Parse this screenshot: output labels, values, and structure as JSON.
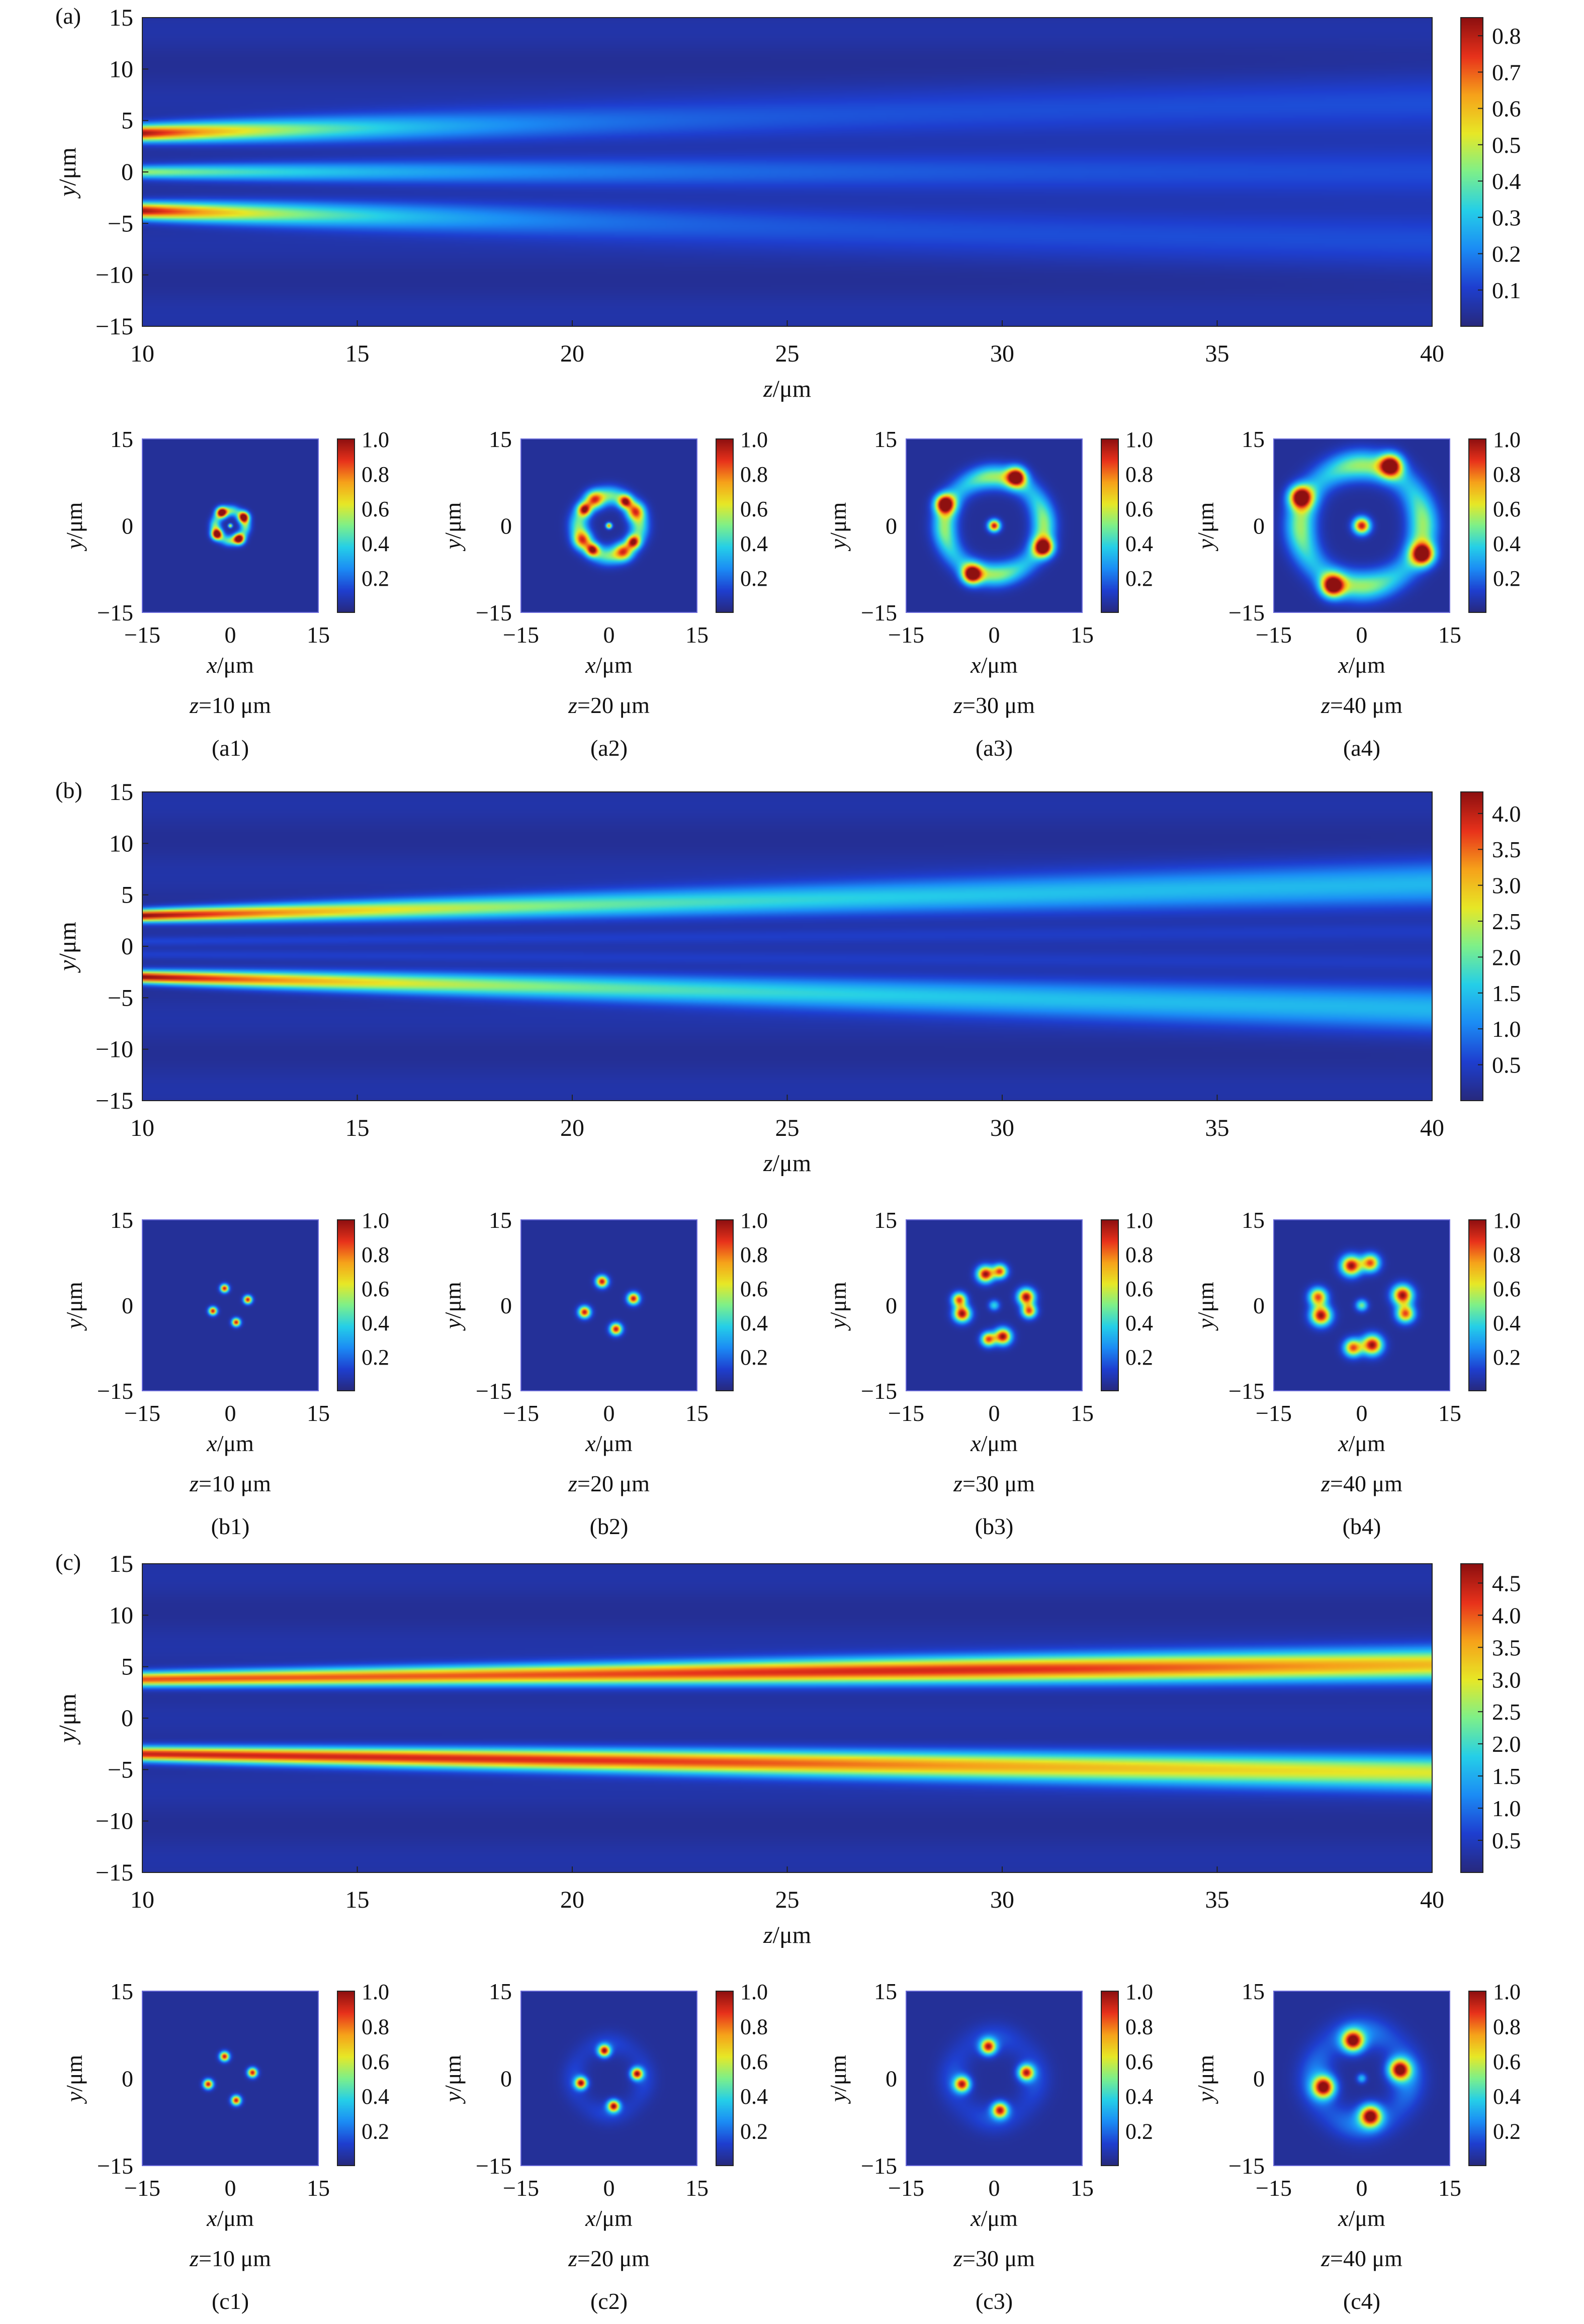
{
  "colormap": [
    "#27297e",
    "#1e3fd0",
    "#1b8cf5",
    "#25cfe8",
    "#7df08a",
    "#e7e826",
    "#f6a21a",
    "#e8321b",
    "#8e1010"
  ],
  "units": {
    "y_axis_label": "y",
    "x_axis_label": "x",
    "z_axis_label": "z",
    "unit": "/μm"
  },
  "panels": [
    {
      "label": "(a)",
      "main_plot": {
        "xticks": [
          "10",
          "15",
          "20",
          "25",
          "30",
          "35",
          "40"
        ],
        "yticks": [
          "15",
          "10",
          "5",
          "0",
          "−5",
          "−10",
          "−15"
        ],
        "colorbar_ticks": [
          "0.8",
          "0.7",
          "0.6",
          "0.5",
          "0.4",
          "0.3",
          "0.2",
          "0.1"
        ]
      },
      "sub_plots": [
        {
          "label": "(a1)",
          "caption_var": "z",
          "caption_val": "=10 μm"
        },
        {
          "label": "(a2)",
          "caption_var": "z",
          "caption_val": "=20 μm"
        },
        {
          "label": "(a3)",
          "caption_var": "z",
          "caption_val": "=30 μm"
        },
        {
          "label": "(a4)",
          "caption_var": "z",
          "caption_val": "=40 μm"
        }
      ]
    },
    {
      "label": "(b)",
      "main_plot": {
        "xticks": [
          "10",
          "15",
          "20",
          "25",
          "30",
          "35",
          "40"
        ],
        "yticks": [
          "15",
          "10",
          "5",
          "0",
          "−5",
          "−10",
          "−15"
        ],
        "colorbar_ticks": [
          "4.0",
          "3.5",
          "3.0",
          "2.5",
          "2.0",
          "1.5",
          "1.0",
          "0.5"
        ]
      },
      "sub_plots": [
        {
          "label": "(b1)",
          "caption_var": "z",
          "caption_val": "=10 μm"
        },
        {
          "label": "(b2)",
          "caption_var": "z",
          "caption_val": "=20 μm"
        },
        {
          "label": "(b3)",
          "caption_var": "z",
          "caption_val": "=30 μm"
        },
        {
          "label": "(b4)",
          "caption_var": "z",
          "caption_val": "=40 μm"
        }
      ]
    },
    {
      "label": "(c)",
      "main_plot": {
        "xticks": [
          "10",
          "15",
          "20",
          "25",
          "30",
          "35",
          "40"
        ],
        "yticks": [
          "15",
          "10",
          "5",
          "0",
          "−5",
          "−10",
          "−15"
        ],
        "colorbar_ticks": [
          "4.5",
          "4.0",
          "3.5",
          "3.0",
          "2.5",
          "2.0",
          "1.5",
          "1.0",
          "0.5"
        ]
      },
      "sub_plots": [
        {
          "label": "(c1)",
          "caption_var": "z",
          "caption_val": "=10 μm"
        },
        {
          "label": "(c2)",
          "caption_var": "z",
          "caption_val": "=20 μm"
        },
        {
          "label": "(c3)",
          "caption_var": "z",
          "caption_val": "=30 μm"
        },
        {
          "label": "(c4)",
          "caption_var": "z",
          "caption_val": "=40 μm"
        }
      ]
    }
  ],
  "sub_plot_axes": {
    "xticks": [
      "−15",
      "0",
      "15"
    ],
    "yticks": [
      "15",
      "0",
      "−15"
    ],
    "colorbar_ticks": [
      "1.0",
      "0.8",
      "0.6",
      "0.4",
      "0.2"
    ]
  },
  "chart_data": [
    {
      "type": "heatmap",
      "id": "a",
      "x_name": "z",
      "y_name": "y",
      "unit": "μm",
      "xlim": [
        10,
        40
      ],
      "ylim": [
        -15,
        15
      ],
      "clim": [
        0,
        0.85
      ],
      "beams": [
        {
          "y0": 3.8,
          "y1": 6.5,
          "w0": 0.8,
          "w1": 3.2,
          "i0": 0.8,
          "i1": 0.07,
          "decay": 2.2
        },
        {
          "y0": 0,
          "y1": 0,
          "w0": 0.6,
          "w1": 2.6,
          "i0": 0.4,
          "i1": 0.06,
          "decay": 1.4
        },
        {
          "y0": -3.8,
          "y1": -6.5,
          "w0": 0.8,
          "w1": 3.2,
          "i0": 0.8,
          "i1": 0.07,
          "decay": 2.2
        }
      ]
    },
    {
      "type": "heatmap",
      "id": "b",
      "x_name": "z",
      "y_name": "y",
      "unit": "μm",
      "xlim": [
        10,
        40
      ],
      "ylim": [
        -15,
        15
      ],
      "clim": [
        0,
        4.3
      ],
      "beams": [
        {
          "y0": 3.0,
          "y1": 6.0,
          "w0": 0.6,
          "w1": 2.2,
          "i0": 4.2,
          "i1": 1.1,
          "decay": 1.3
        },
        {
          "y0": -3.0,
          "y1": -6.0,
          "w0": 0.6,
          "w1": 2.2,
          "i0": 4.2,
          "i1": 1.1,
          "decay": 1.3
        },
        {
          "y0": 0.5,
          "y1": 1.5,
          "w0": 0.4,
          "w1": 0.9,
          "i0": 0.3,
          "i1": 0.2,
          "decay": 1.0
        },
        {
          "y0": -0.8,
          "y1": -1.6,
          "w0": 0.4,
          "w1": 0.9,
          "i0": 0.25,
          "i1": 0.2,
          "decay": 1.0
        }
      ]
    },
    {
      "type": "heatmap",
      "id": "c",
      "x_name": "z",
      "y_name": "y",
      "unit": "μm",
      "xlim": [
        10,
        40
      ],
      "ylim": [
        -15,
        15
      ],
      "clim": [
        0,
        4.8
      ],
      "beams": [
        {
          "y0": 3.8,
          "y1": 5.2,
          "w0": 0.7,
          "w1": 1.5,
          "i0": 3.9,
          "i1": 3.0,
          "decay": 1.0,
          "peak_at": 29,
          "peak": 4.7
        },
        {
          "y0": -3.5,
          "y1": -5.3,
          "w0": 0.7,
          "w1": 1.6,
          "i0": 4.2,
          "i1": 2.7,
          "decay": 1.0,
          "peak_at": 21,
          "peak": 4.6
        }
      ]
    },
    {
      "type": "heatmap",
      "id": "a1",
      "spots": [
        [
          -1.5,
          2.3,
          0.9,
          0.95
        ],
        [
          2.3,
          1.5,
          0.9,
          0.95
        ],
        [
          1.5,
          -2.3,
          0.9,
          0.95
        ],
        [
          -2.3,
          -1.5,
          0.9,
          0.95
        ]
      ],
      "ring": [
        2.6,
        0.9,
        0.45
      ],
      "center": [
        0.35,
        0.6
      ]
    },
    {
      "type": "heatmap",
      "id": "a2",
      "spots": [
        [
          -2.5,
          4.5,
          1.5,
          0.55
        ],
        [
          4.5,
          2.5,
          1.5,
          0.55
        ],
        [
          2.5,
          -4.5,
          1.5,
          0.55
        ],
        [
          -4.5,
          -2.5,
          1.5,
          0.55
        ],
        [
          2.8,
          4.2,
          1.1,
          0.7
        ],
        [
          4.2,
          -2.8,
          1.1,
          0.7
        ],
        [
          -2.8,
          -4.2,
          1.1,
          0.7
        ],
        [
          -4.2,
          2.8,
          1.1,
          0.7
        ]
      ],
      "ring": [
        5.2,
        1.6,
        0.45
      ],
      "center": [
        0.5,
        0.75
      ]
    },
    {
      "type": "heatmap",
      "id": "a3",
      "spots": [
        [
          3.8,
          8.5,
          1.6,
          0.95
        ],
        [
          8.5,
          -3.8,
          1.6,
          0.95
        ],
        [
          -3.8,
          -8.5,
          1.6,
          0.95
        ],
        [
          -8.5,
          3.8,
          1.6,
          0.95
        ]
      ],
      "ring": [
        8.5,
        2.0,
        0.5
      ],
      "center": [
        1.0,
        0.9
      ]
    },
    {
      "type": "heatmap",
      "id": "a4",
      "spots": [
        [
          5.0,
          10.5,
          1.9,
          0.95
        ],
        [
          10.5,
          -5.0,
          1.9,
          0.95
        ],
        [
          -5.0,
          -10.5,
          1.9,
          0.95
        ],
        [
          -10.5,
          5.0,
          1.9,
          0.95
        ]
      ],
      "ring": [
        10.5,
        2.5,
        0.5
      ],
      "center": [
        1.4,
        0.9
      ]
    },
    {
      "type": "heatmap",
      "id": "b1",
      "spots": [
        [
          -1.0,
          3.0,
          0.7,
          0.9
        ],
        [
          3.0,
          1.0,
          0.7,
          0.9
        ],
        [
          1.0,
          -3.0,
          0.7,
          0.9
        ],
        [
          -3.0,
          -1.0,
          0.7,
          0.9
        ]
      ]
    },
    {
      "type": "heatmap",
      "id": "b2",
      "spots": [
        [
          -1.2,
          4.2,
          1.0,
          0.9
        ],
        [
          4.2,
          1.2,
          1.0,
          0.9
        ],
        [
          1.2,
          -4.2,
          1.0,
          0.9
        ],
        [
          -4.2,
          -1.2,
          1.0,
          0.9
        ]
      ]
    },
    {
      "type": "heatmap",
      "id": "b3",
      "spots": [
        [
          -1.5,
          5.5,
          1.4,
          0.95
        ],
        [
          1.0,
          6.0,
          1.2,
          0.8
        ],
        [
          5.5,
          1.5,
          1.4,
          0.95
        ],
        [
          6.0,
          -1.0,
          1.2,
          0.8
        ],
        [
          1.5,
          -5.5,
          1.4,
          0.95
        ],
        [
          -1.0,
          -6.0,
          1.2,
          0.8
        ],
        [
          -5.5,
          -1.5,
          1.4,
          0.95
        ],
        [
          -6.0,
          1.0,
          1.2,
          0.8
        ]
      ],
      "center": [
        0.9,
        0.35
      ]
    },
    {
      "type": "heatmap",
      "id": "b4",
      "spots": [
        [
          -1.8,
          7.0,
          1.7,
          0.95
        ],
        [
          1.5,
          7.5,
          1.5,
          0.8
        ],
        [
          7.0,
          1.8,
          1.7,
          0.95
        ],
        [
          7.5,
          -1.5,
          1.5,
          0.8
        ],
        [
          1.8,
          -7.0,
          1.7,
          0.95
        ],
        [
          -1.5,
          -7.5,
          1.5,
          0.8
        ],
        [
          -7.0,
          -1.8,
          1.7,
          0.95
        ],
        [
          -7.5,
          1.5,
          1.5,
          0.8
        ]
      ],
      "center": [
        1.0,
        0.45
      ]
    },
    {
      "type": "heatmap",
      "id": "c1",
      "spots": [
        [
          -1.0,
          3.8,
          0.8,
          0.9
        ],
        [
          3.8,
          1.0,
          0.8,
          0.9
        ],
        [
          1.0,
          -3.8,
          0.8,
          0.9
        ],
        [
          -3.8,
          -1.0,
          0.8,
          0.9
        ]
      ]
    },
    {
      "type": "heatmap",
      "id": "c2",
      "spots": [
        [
          -0.8,
          4.8,
          1.0,
          0.9
        ],
        [
          4.8,
          0.8,
          1.0,
          0.9
        ],
        [
          0.8,
          -4.8,
          1.0,
          0.9
        ],
        [
          -4.8,
          -0.8,
          1.0,
          0.9
        ]
      ],
      "ring": [
        6.0,
        2.0,
        0.1
      ]
    },
    {
      "type": "heatmap",
      "id": "c3",
      "spots": [
        [
          -1.0,
          5.5,
          1.3,
          0.85
        ],
        [
          5.5,
          1.0,
          1.3,
          0.85
        ],
        [
          1.0,
          -5.5,
          1.3,
          0.85
        ],
        [
          -5.5,
          -1.0,
          1.3,
          0.85
        ]
      ],
      "ring": [
        7.0,
        2.5,
        0.12
      ]
    },
    {
      "type": "heatmap",
      "id": "c4",
      "spots": [
        [
          -1.5,
          6.5,
          1.8,
          0.95
        ],
        [
          6.5,
          1.5,
          1.8,
          0.95
        ],
        [
          1.5,
          -6.5,
          1.8,
          0.95
        ],
        [
          -6.5,
          -1.5,
          1.8,
          0.95
        ]
      ],
      "ring": [
        8.0,
        2.8,
        0.2
      ],
      "center": [
        0.8,
        0.3
      ]
    }
  ]
}
